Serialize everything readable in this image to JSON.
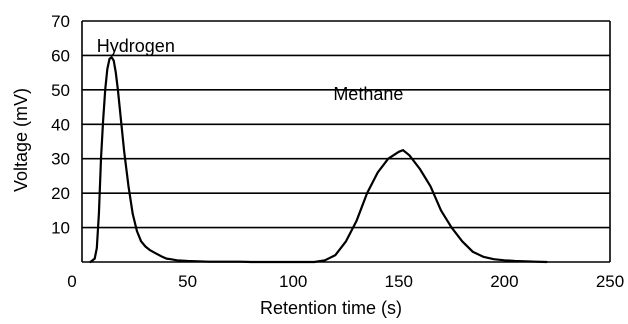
{
  "chart_data": {
    "type": "line",
    "title": "",
    "xlabel": "Retention time (s)",
    "ylabel": "Voltage (mV)",
    "xlim": [
      0,
      250
    ],
    "ylim": [
      0,
      70
    ],
    "x_ticks": [
      "0",
      "50",
      "100",
      "150",
      "200",
      "250"
    ],
    "y_ticks": [
      "10",
      "20",
      "30",
      "40",
      "50",
      "60",
      "70"
    ],
    "grid": "horizontal",
    "legend": "none",
    "annotations": [
      {
        "text": "Hydrogen",
        "x": 7,
        "y": 61
      },
      {
        "text": "Methane",
        "x": 119,
        "y": 47
      }
    ],
    "series": [
      {
        "x": [
          4,
          6,
          7,
          8,
          9,
          10,
          11,
          12,
          13,
          14,
          15,
          16,
          17,
          18,
          19,
          20,
          22,
          24,
          26,
          28,
          30,
          32,
          35,
          38,
          40,
          42,
          45,
          50,
          55,
          60,
          70,
          75,
          80,
          90,
          100,
          110,
          115,
          120,
          125,
          130,
          135,
          140,
          145,
          150,
          152,
          155,
          160,
          165,
          170,
          175,
          180,
          185,
          190,
          195,
          200,
          205,
          210,
          215,
          220
        ],
        "values": [
          0,
          1,
          4,
          14,
          30,
          41,
          50,
          56,
          59,
          59.5,
          58.5,
          55,
          50,
          44,
          38,
          32,
          22,
          14,
          9,
          6,
          4.5,
          3.5,
          2.5,
          1.5,
          1,
          0.8,
          0.5,
          0.3,
          0.2,
          0.1,
          0.1,
          0.1,
          0,
          0,
          0,
          0,
          0.5,
          2,
          6,
          12,
          20,
          26,
          30,
          32,
          32.5,
          31,
          27,
          22,
          15,
          10,
          6,
          3,
          1.5,
          0.8,
          0.5,
          0.3,
          0.2,
          0.1,
          0
        ]
      }
    ]
  }
}
